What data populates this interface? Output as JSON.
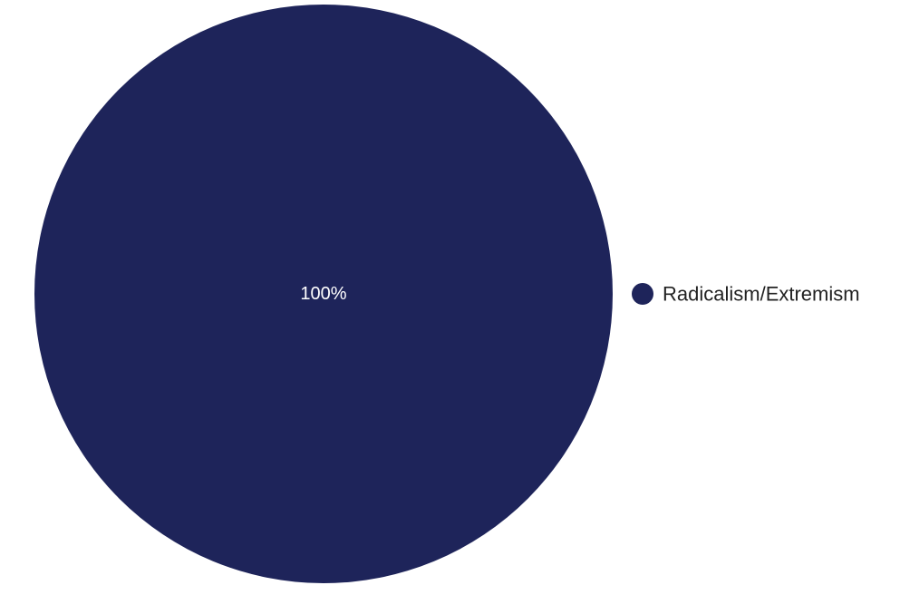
{
  "chart_data": {
    "type": "pie",
    "slices": [
      {
        "label": "Radicalism/Extremism",
        "value": 100,
        "display": "100%",
        "color": "#1e245a"
      }
    ],
    "legend_position": "right"
  }
}
